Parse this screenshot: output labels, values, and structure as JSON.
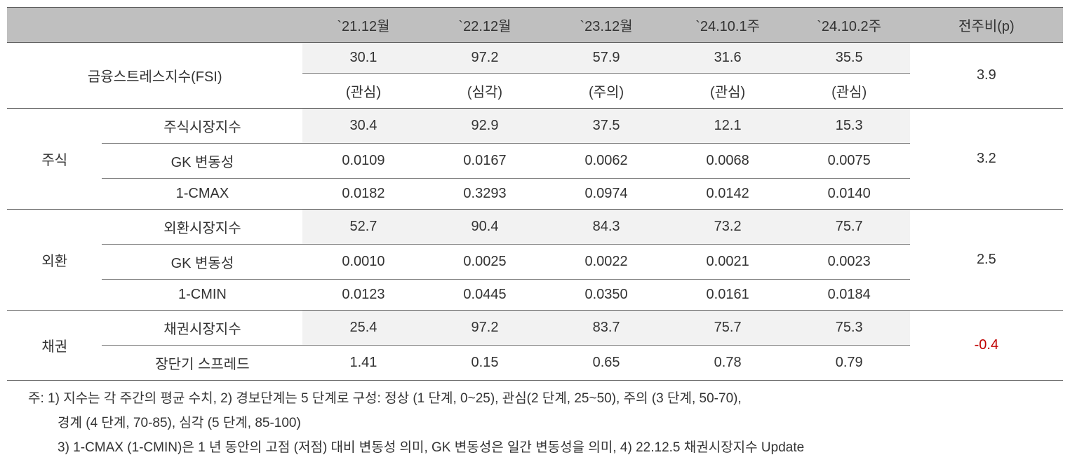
{
  "table": {
    "header": {
      "blank1": "",
      "blank2": "",
      "periods": [
        "`21.12월",
        "`22.12월",
        "`23.12월",
        "`24.10.1주",
        "`24.10.2주"
      ],
      "change": "전주비(p)"
    },
    "fsi": {
      "label": "금융스트레스지수(FSI)",
      "values": [
        "30.1",
        "97.2",
        "57.9",
        "31.6",
        "35.5"
      ],
      "levels": [
        "(관심)",
        "(심각)",
        "(주의)",
        "(관심)",
        "(관심)"
      ],
      "change": "3.9"
    },
    "stock": {
      "category": "주식",
      "rows": [
        {
          "label": "주식시장지수",
          "values": [
            "30.4",
            "92.9",
            "37.5",
            "12.1",
            "15.3"
          ],
          "shaded": true
        },
        {
          "label": "GK 변동성",
          "values": [
            "0.0109",
            "0.0167",
            "0.0062",
            "0.0068",
            "0.0075"
          ],
          "shaded": false
        },
        {
          "label": "1-CMAX",
          "values": [
            "0.0182",
            "0.3293",
            "0.0974",
            "0.0142",
            "0.0140"
          ],
          "shaded": false
        }
      ],
      "change": "3.2"
    },
    "fx": {
      "category": "외환",
      "rows": [
        {
          "label": "외환시장지수",
          "values": [
            "52.7",
            "90.4",
            "84.3",
            "73.2",
            "75.7"
          ],
          "shaded": true
        },
        {
          "label": "GK 변동성",
          "values": [
            "0.0010",
            "0.0025",
            "0.0022",
            "0.0021",
            "0.0023"
          ],
          "shaded": false
        },
        {
          "label": "1-CMIN",
          "values": [
            "0.0123",
            "0.0445",
            "0.0350",
            "0.0161",
            "0.0184"
          ],
          "shaded": false
        }
      ],
      "change": "2.5"
    },
    "bond": {
      "category": "채권",
      "rows": [
        {
          "label": "채권시장지수",
          "values": [
            "25.4",
            "97.2",
            "83.7",
            "75.7",
            "75.3"
          ],
          "shaded": true
        },
        {
          "label": "장단기 스프레드",
          "values": [
            "1.41",
            "0.15",
            "0.65",
            "0.78",
            "0.79"
          ],
          "shaded": false
        }
      ],
      "change": "-0.4",
      "change_negative": true
    }
  },
  "footnotes": {
    "line1": "주: 1) 지수는 각 주간의 평균 수치, 2) 경보단계는 5 단계로 구성: 정상 (1 단계, 0~25), 관심(2 단계, 25~50), 주의 (3 단계, 50-70),",
    "line2": "경계 (4 단계, 70-85), 심각 (5 단계, 85-100)",
    "line3": "3) 1-CMAX (1-CMIN)은 1 년 동안의 고점 (저점) 대비 변동성 의미, GK 변동성은 일간 변동성을 의미, 4) 22.12.5 채권시장지수 Update"
  },
  "styling": {
    "header_bg": "#bfbfbf",
    "shaded_bg": "#f2f2f2",
    "border_thick_color": "#595959",
    "border_thin_color": "#808080",
    "negative_color": "#c00000",
    "text_color": "#333333",
    "font_family": "Malgun Gothic",
    "base_fontsize": 20,
    "footnote_fontsize": 19
  }
}
